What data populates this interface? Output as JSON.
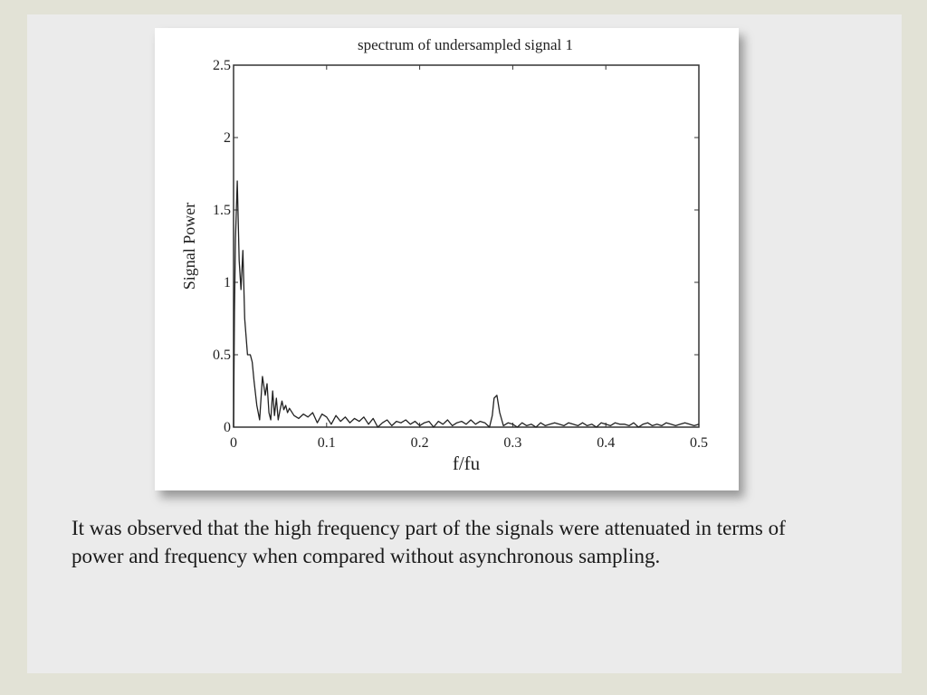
{
  "slide": {
    "caption": "It was observed that the high frequency part of the signals were attenuated in terms of power and frequency when compared without asynchronous sampling."
  },
  "chart_data": {
    "type": "line",
    "title": "spectrum of undersampled signal 1",
    "xlabel": "f/fu",
    "ylabel": "Signal Power",
    "xlim": [
      0,
      0.5
    ],
    "ylim": [
      0,
      2.5
    ],
    "xticks": [
      0,
      0.1,
      0.2,
      0.3,
      0.4,
      0.5
    ],
    "xtick_labels": [
      "0",
      "0.1",
      "0.2",
      "0.3",
      "0.4",
      "0.5"
    ],
    "yticks": [
      0,
      0.5,
      1,
      1.5,
      2,
      2.5
    ],
    "ytick_labels": [
      "0",
      "0.5",
      "1",
      "1.5",
      "2",
      "2.5"
    ],
    "grid": false,
    "series": [
      {
        "x": [
          0,
          0.001,
          0.002,
          0.004,
          0.006,
          0.008,
          0.01,
          0.012,
          0.015,
          0.018,
          0.02,
          0.022,
          0.025,
          0.028,
          0.031,
          0.034,
          0.036,
          0.038,
          0.04,
          0.042,
          0.044,
          0.046,
          0.048,
          0.05,
          0.052,
          0.054,
          0.056,
          0.058,
          0.06,
          0.065,
          0.07,
          0.075,
          0.08,
          0.085,
          0.09,
          0.095,
          0.1,
          0.105,
          0.11,
          0.115,
          0.12,
          0.125,
          0.13,
          0.135,
          0.14,
          0.145,
          0.15,
          0.155,
          0.16,
          0.165,
          0.17,
          0.175,
          0.18,
          0.185,
          0.19,
          0.195,
          0.2,
          0.205,
          0.21,
          0.215,
          0.22,
          0.225,
          0.23,
          0.235,
          0.24,
          0.245,
          0.25,
          0.255,
          0.26,
          0.265,
          0.27,
          0.275,
          0.278,
          0.28,
          0.283,
          0.286,
          0.29,
          0.295,
          0.3,
          0.305,
          0.31,
          0.315,
          0.32,
          0.325,
          0.33,
          0.335,
          0.34,
          0.345,
          0.35,
          0.355,
          0.36,
          0.365,
          0.37,
          0.375,
          0.38,
          0.385,
          0.39,
          0.395,
          0.4,
          0.405,
          0.41,
          0.415,
          0.42,
          0.425,
          0.43,
          0.435,
          0.44,
          0.445,
          0.45,
          0.455,
          0.46,
          0.465,
          0.47,
          0.475,
          0.48,
          0.485,
          0.49,
          0.495,
          0.5
        ],
        "y": [
          0.0,
          0.8,
          1.3,
          1.7,
          1.15,
          0.95,
          1.22,
          0.75,
          0.5,
          0.5,
          0.45,
          0.32,
          0.15,
          0.05,
          0.35,
          0.22,
          0.3,
          0.1,
          0.05,
          0.25,
          0.08,
          0.2,
          0.05,
          0.12,
          0.18,
          0.12,
          0.15,
          0.1,
          0.13,
          0.08,
          0.06,
          0.09,
          0.07,
          0.1,
          0.03,
          0.09,
          0.07,
          0.02,
          0.08,
          0.04,
          0.07,
          0.03,
          0.06,
          0.04,
          0.07,
          0.02,
          0.06,
          0.0,
          0.03,
          0.05,
          0.01,
          0.04,
          0.03,
          0.05,
          0.02,
          0.04,
          0.01,
          0.03,
          0.04,
          0.0,
          0.04,
          0.02,
          0.05,
          0.01,
          0.03,
          0.04,
          0.02,
          0.05,
          0.02,
          0.04,
          0.03,
          0.0,
          0.08,
          0.2,
          0.22,
          0.1,
          0.01,
          0.03,
          0.02,
          0.0,
          0.03,
          0.01,
          0.02,
          0.0,
          0.03,
          0.01,
          0.02,
          0.03,
          0.02,
          0.01,
          0.03,
          0.02,
          0.01,
          0.03,
          0.01,
          0.02,
          0.0,
          0.03,
          0.02,
          0.01,
          0.03,
          0.02,
          0.02,
          0.01,
          0.03,
          0.0,
          0.02,
          0.03,
          0.01,
          0.02,
          0.01,
          0.03,
          0.02,
          0.01,
          0.02,
          0.03,
          0.02,
          0.01,
          0.02
        ]
      }
    ],
    "colors": {
      "line": "#222222",
      "axes": "#333333"
    }
  }
}
